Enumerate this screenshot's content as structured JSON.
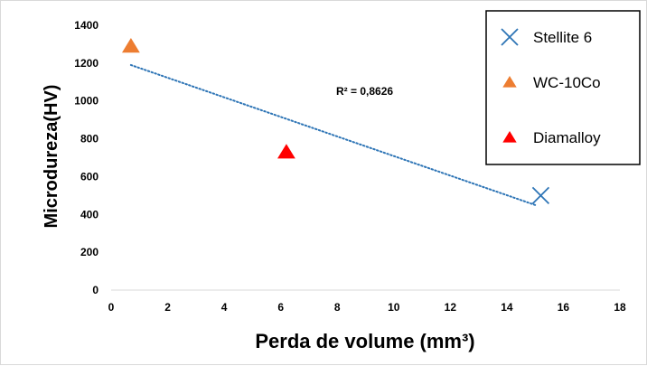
{
  "chart_data": {
    "type": "scatter",
    "xlabel": "Perda de volume (mm³)",
    "ylabel": "Microdureza(HV)",
    "xlim": [
      0,
      18
    ],
    "ylim": [
      0,
      1400
    ],
    "x_ticks": [
      "0",
      "2",
      "4",
      "6",
      "8",
      "10",
      "12",
      "14",
      "16",
      "18"
    ],
    "y_ticks": [
      "0",
      "200",
      "400",
      "600",
      "800",
      "1000",
      "1200",
      "1400"
    ],
    "grid": false,
    "legend_position": "top-right",
    "series": [
      {
        "name": "Stellite 6",
        "marker": "x",
        "color": "#2e75b6",
        "points": [
          [
            15.2,
            500
          ]
        ]
      },
      {
        "name": "WC-10Co",
        "marker": "triangle",
        "color": "#ed7d31",
        "points": [
          [
            0.7,
            1290
          ]
        ]
      },
      {
        "name": "Diamalloy",
        "marker": "triangle",
        "color": "#ff0000",
        "points": [
          [
            6.2,
            730
          ]
        ]
      }
    ],
    "trendline": {
      "type": "linear",
      "style": "dotted",
      "color": "#2e75b6",
      "from": [
        0.7,
        1190
      ],
      "to": [
        15.0,
        450
      ],
      "label": "R² = 0,8626"
    }
  }
}
